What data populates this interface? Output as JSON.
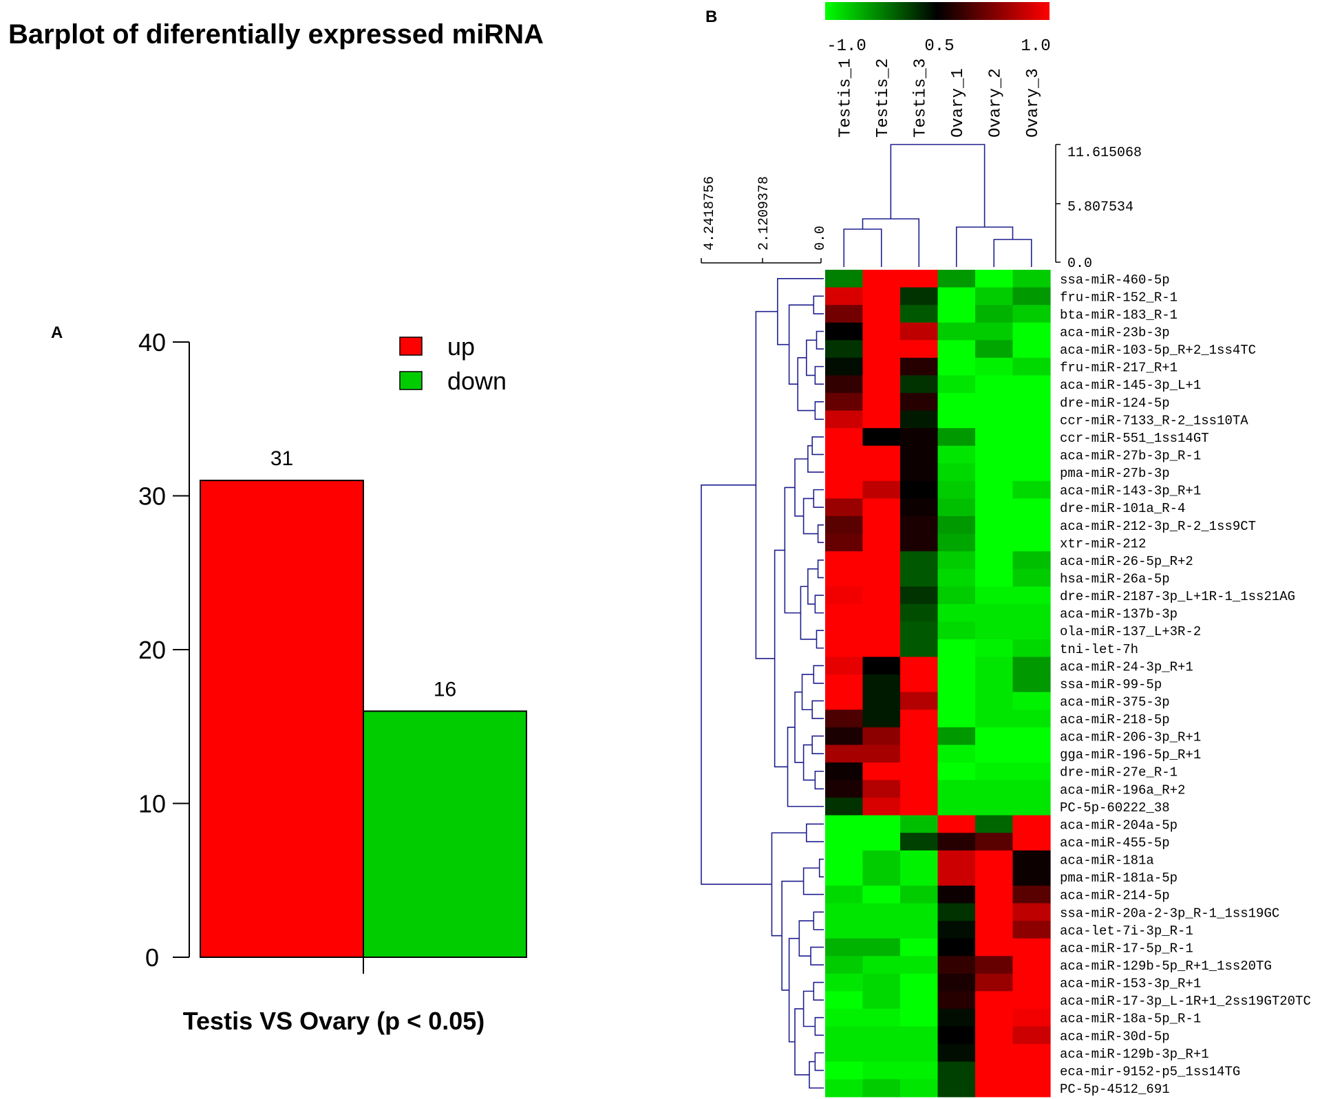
{
  "panel_a": {
    "letter": "A",
    "title": "Barplot of diferentially expressed miRNA",
    "colors": {
      "up": "#ff0000",
      "down": "#00cc00"
    },
    "chart_data": {
      "type": "bar",
      "title": "Barplot of diferentially expressed miRNA",
      "xlabel": "Testis VS Ovary (p < 0.05)",
      "ylabel": "",
      "categories": [
        "up",
        "down"
      ],
      "values": [
        31,
        16
      ],
      "ylim": [
        0,
        40
      ],
      "yticks": [
        0,
        10,
        20,
        30,
        40
      ],
      "legend": {
        "position": "top-right",
        "entries": [
          "up",
          "down"
        ]
      },
      "data_labels": [
        "31",
        "16"
      ]
    }
  },
  "panel_b": {
    "letter": "B",
    "colorbar": {
      "stops": [
        "#00ff00",
        "#000000",
        "#ff0000"
      ],
      "labels": [
        "-1.0",
        "0.5",
        "1.0"
      ]
    },
    "col_dendro_scale": [
      "11.615068",
      "5.807534",
      "0.0"
    ],
    "row_dendro_scale": [
      "4.2418756",
      "2.1209378",
      "0.0"
    ],
    "chart_data": {
      "type": "heatmap",
      "columns": [
        "Testis_1",
        "Testis_2",
        "Testis_3",
        "Ovary_1",
        "Ovary_2",
        "Ovary_3"
      ],
      "rows": [
        "ssa-miR-460-5p",
        "fru-miR-152_R-1",
        "bta-miR-183_R-1",
        "aca-miR-23b-3p",
        "aca-miR-103-5p_R+2_1ss4TC",
        "fru-miR-217_R+1",
        "aca-miR-145-3p_L+1",
        "dre-miR-124-5p",
        "ccr-miR-7133_R-2_1ss10TA",
        "ccr-miR-551_1ss14GT",
        "aca-miR-27b-3p_R-1",
        "pma-miR-27b-3p",
        "aca-miR-143-3p_R+1",
        "dre-miR-101a_R-4",
        "aca-miR-212-3p_R-2_1ss9CT",
        "xtr-miR-212",
        "aca-miR-26-5p_R+2",
        "hsa-miR-26a-5p",
        "dre-miR-2187-3p_L+1R-1_1ss21AG",
        "aca-miR-137b-3p",
        "ola-miR-137_L+3R-2",
        "tni-let-7h",
        "aca-miR-24-3p_R+1",
        "ssa-miR-99-5p",
        "aca-miR-375-3p",
        "aca-miR-218-5p",
        "aca-miR-206-3p_R+1",
        "gga-miR-196-5p_R+1",
        "dre-miR-27e_R-1",
        "aca-miR-196a_R+2",
        "PC-5p-60222_38",
        "aca-miR-204a-5p",
        "aca-miR-455-5p",
        "aca-miR-181a",
        "pma-miR-181a-5p",
        "aca-miR-214-5p",
        "ssa-miR-20a-2-3p_R-1_1ss19GC",
        "aca-let-7i-3p_R-1",
        "aca-miR-17-5p_R-1",
        "aca-miR-129b-5p_R+1_1ss20TG",
        "aca-miR-153-3p_R+1",
        "aca-miR-17-3p_L-1R+1_2ss19GT20TC",
        "aca-miR-18a-5p_R-1",
        "aca-miR-30d-5p",
        "aca-miR-129b-3p_R+1",
        "eca-mir-9152-p5_1ss14TG",
        "PC-5p-4512_691"
      ],
      "values": [
        [
          -0.5,
          1.0,
          1.0,
          -0.6,
          -1.0,
          -0.8
        ],
        [
          0.85,
          1.0,
          -0.2,
          -1.0,
          -0.8,
          -0.6
        ],
        [
          0.45,
          1.0,
          -0.35,
          -1.0,
          -0.7,
          -0.8
        ],
        [
          0.0,
          1.0,
          0.75,
          -0.8,
          -0.8,
          -1.0
        ],
        [
          -0.2,
          1.0,
          1.0,
          -1.0,
          -0.65,
          -1.0
        ],
        [
          -0.05,
          1.0,
          0.15,
          -1.0,
          -0.95,
          -0.85
        ],
        [
          0.2,
          1.0,
          -0.2,
          -0.9,
          -1.0,
          -1.0
        ],
        [
          0.4,
          1.0,
          0.15,
          -1.0,
          -1.0,
          -1.0
        ],
        [
          0.8,
          1.0,
          -0.1,
          -1.0,
          -1.0,
          -1.0
        ],
        [
          1.0,
          0.0,
          0.05,
          -0.6,
          -1.0,
          -1.0
        ],
        [
          1.0,
          1.0,
          0.05,
          -0.9,
          -1.0,
          -1.0
        ],
        [
          1.0,
          1.0,
          0.05,
          -0.85,
          -1.0,
          -1.0
        ],
        [
          1.0,
          0.75,
          0.0,
          -0.8,
          -1.0,
          -0.85
        ],
        [
          0.6,
          1.0,
          0.05,
          -0.75,
          -1.0,
          -1.0
        ],
        [
          0.35,
          1.0,
          0.1,
          -0.6,
          -1.0,
          -1.0
        ],
        [
          0.4,
          1.0,
          0.1,
          -0.65,
          -1.0,
          -1.0
        ],
        [
          1.0,
          1.0,
          -0.35,
          -0.8,
          -1.0,
          -0.75
        ],
        [
          1.0,
          1.0,
          -0.35,
          -0.85,
          -1.0,
          -0.8
        ],
        [
          0.95,
          1.0,
          -0.2,
          -0.8,
          -0.95,
          -0.95
        ],
        [
          1.0,
          1.0,
          -0.3,
          -0.9,
          -0.9,
          -0.9
        ],
        [
          1.0,
          1.0,
          -0.35,
          -0.85,
          -0.9,
          -0.9
        ],
        [
          1.0,
          1.0,
          -0.35,
          -1.0,
          -0.95,
          -0.85
        ],
        [
          0.9,
          0.0,
          1.0,
          -1.0,
          -0.9,
          -0.6
        ],
        [
          1.0,
          -0.1,
          1.0,
          -1.0,
          -0.9,
          -0.6
        ],
        [
          1.0,
          -0.1,
          0.7,
          -1.0,
          -0.9,
          -0.95
        ],
        [
          0.3,
          -0.1,
          1.0,
          -1.0,
          -0.9,
          -0.9
        ],
        [
          0.1,
          0.55,
          1.0,
          -0.6,
          -1.0,
          -1.0
        ],
        [
          0.65,
          0.65,
          1.0,
          -0.95,
          -1.0,
          -1.0
        ],
        [
          0.05,
          1.0,
          1.0,
          -1.0,
          -0.95,
          -0.95
        ],
        [
          0.1,
          0.7,
          1.0,
          -0.9,
          -0.9,
          -0.9
        ],
        [
          -0.2,
          0.85,
          1.0,
          -0.9,
          -0.9,
          -0.9
        ],
        [
          -1.0,
          -1.0,
          -0.75,
          1.0,
          -0.4,
          1.0
        ],
        [
          -1.0,
          -1.0,
          -0.25,
          0.15,
          0.35,
          1.0
        ],
        [
          -1.0,
          -0.8,
          -0.95,
          0.8,
          1.0,
          0.05
        ],
        [
          -1.0,
          -0.8,
          -0.95,
          0.8,
          1.0,
          0.05
        ],
        [
          -0.85,
          -1.0,
          -0.8,
          0.05,
          1.0,
          0.35
        ],
        [
          -0.9,
          -0.9,
          -0.9,
          -0.2,
          1.0,
          0.75
        ],
        [
          -0.9,
          -0.9,
          -0.9,
          -0.05,
          1.0,
          0.55
        ],
        [
          -0.7,
          -0.7,
          -1.0,
          0.0,
          1.0,
          1.0
        ],
        [
          -0.8,
          -0.9,
          -0.9,
          0.2,
          0.4,
          1.0
        ],
        [
          -0.9,
          -0.85,
          -1.0,
          0.1,
          0.6,
          1.0
        ],
        [
          -1.0,
          -0.85,
          -1.0,
          0.15,
          1.0,
          1.0
        ],
        [
          -0.95,
          -0.95,
          -1.0,
          -0.05,
          1.0,
          0.95
        ],
        [
          -0.9,
          -0.9,
          -0.9,
          0.0,
          1.0,
          0.8
        ],
        [
          -0.9,
          -0.9,
          -0.9,
          -0.05,
          1.0,
          1.0
        ],
        [
          -1.0,
          -0.95,
          -0.95,
          -0.25,
          1.0,
          1.0
        ],
        [
          -0.9,
          -0.8,
          -0.9,
          -0.25,
          1.0,
          1.0
        ]
      ]
    }
  }
}
